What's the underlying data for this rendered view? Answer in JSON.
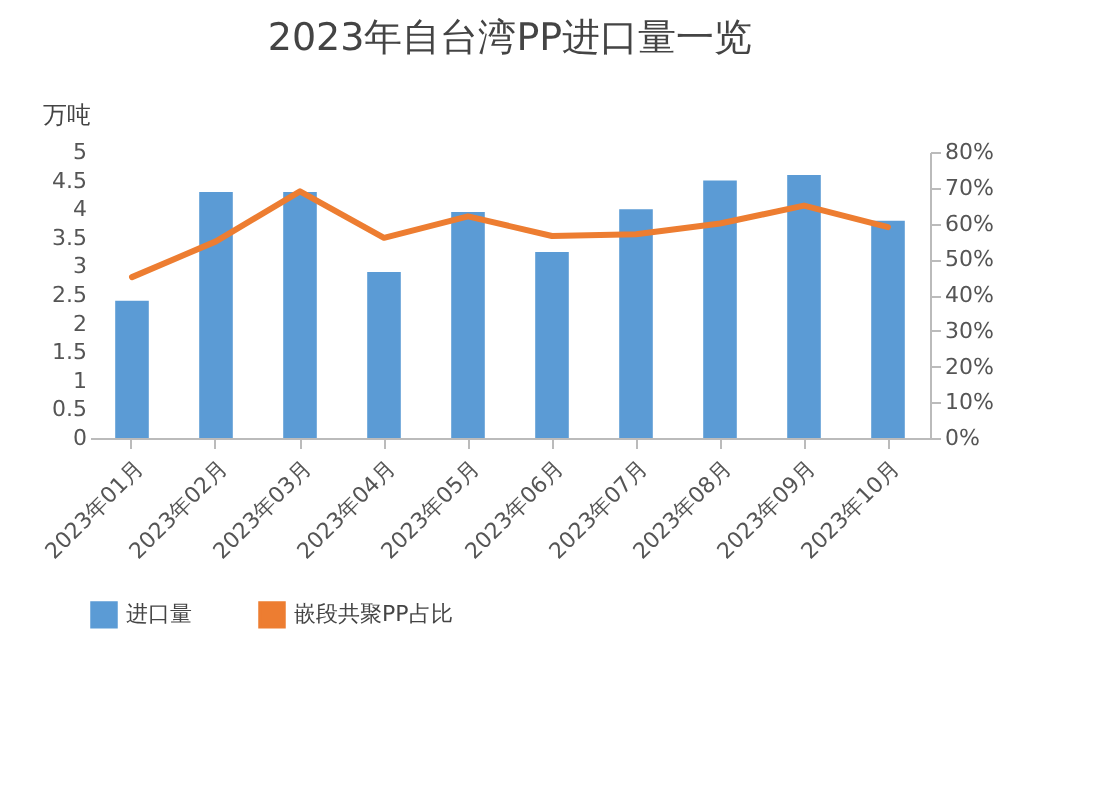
{
  "chart_data": {
    "type": "bar",
    "title": "2023年自台湾PP进口量一览",
    "ylabel": "万吨",
    "categories": [
      "2023年01月",
      "2023年02月",
      "2023年03月",
      "2023年04月",
      "2023年05月",
      "2023年06月",
      "2023年07月",
      "2023年08月",
      "2023年09月",
      "2023年10月"
    ],
    "series": [
      {
        "name": "进口量",
        "color": "#5b9bd5",
        "values": [
          2.4,
          4.3,
          4.3,
          2.9,
          3.95,
          3.25,
          4.0,
          4.5,
          4.6,
          3.8
        ]
      },
      {
        "name": "嵌段共聚PP占比",
        "color": "#ed7d31",
        "type": "line",
        "axis": "y2",
        "values": [
          45,
          55,
          69,
          56,
          62,
          56.5,
          57,
          60,
          65,
          59
        ]
      }
    ],
    "ylim": [
      0,
      5
    ],
    "yticks": [
      0,
      0.5,
      1,
      1.5,
      2,
      2.5,
      3,
      3.5,
      4,
      4.5,
      5
    ],
    "y2lim": [
      0,
      80
    ],
    "y2ticks": [
      {
        "value": 0,
        "label": "0%"
      },
      {
        "value": 10,
        "label": "10%"
      },
      {
        "value": 20,
        "label": "20%"
      },
      {
        "value": 30,
        "label": "30%"
      },
      {
        "value": 40,
        "label": "40%"
      },
      {
        "value": 50,
        "label": "50%"
      },
      {
        "value": 60,
        "label": "60%"
      },
      {
        "value": 70,
        "label": "70%"
      },
      {
        "value": 80,
        "label": "80%"
      }
    ],
    "grid": false,
    "legend": "bottom"
  }
}
